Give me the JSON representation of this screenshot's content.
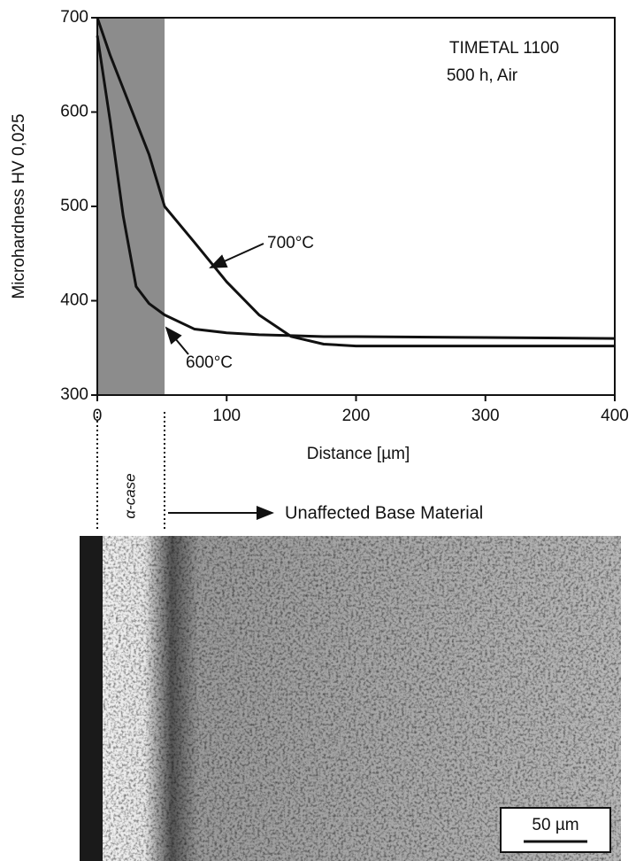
{
  "chart_data": {
    "type": "line",
    "xlabel": "Distance [µm]",
    "ylabel": "Microhardness HV 0,025",
    "annotations": [
      "TIMETAL 1100",
      "500 h, Air"
    ],
    "x": [
      0,
      10,
      20,
      30,
      40,
      52,
      75,
      100,
      125,
      150,
      175,
      200,
      300,
      400
    ],
    "series": [
      {
        "name": "700°C",
        "color": "#111111",
        "values": [
          700,
          660,
          625,
          590,
          555,
          500,
          462,
          420,
          385,
          362,
          354,
          352,
          352,
          352
        ]
      },
      {
        "name": "600°C",
        "color": "#111111",
        "values": [
          681,
          590,
          490,
          415,
          397,
          385,
          370,
          366,
          364,
          363,
          362,
          362,
          361,
          360
        ]
      }
    ],
    "shaded_region": [
      0,
      52
    ],
    "shaded_color": "#8c8c8c",
    "xlim": [
      0,
      400
    ],
    "xticks": [
      0,
      100,
      200,
      300,
      400
    ],
    "ylim": [
      300,
      700
    ],
    "yticks": [
      300,
      400,
      500,
      600,
      700
    ]
  },
  "micrograph": {
    "zone_label": "α-case",
    "base_label": "Unaffected Base Material",
    "scale_bar": "50 µm"
  }
}
